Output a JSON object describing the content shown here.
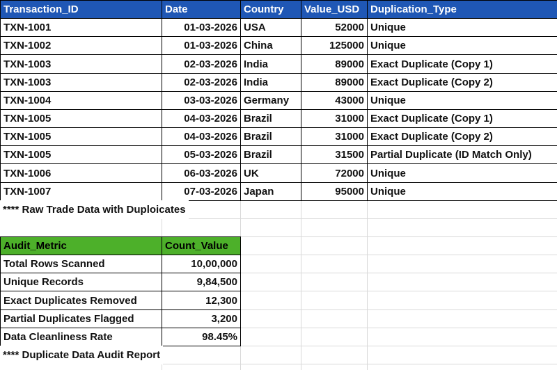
{
  "raw_table": {
    "header": [
      "Transaction_ID",
      "Date",
      "Country",
      "Value_USD",
      "Duplication_Type"
    ],
    "rows": [
      [
        "TXN-1001",
        "01-03-2026",
        "USA",
        "52000",
        "Unique"
      ],
      [
        "TXN-1002",
        "01-03-2026",
        "China",
        "125000",
        "Unique"
      ],
      [
        "TXN-1003",
        "02-03-2026",
        "India",
        "89000",
        "Exact Duplicate (Copy 1)"
      ],
      [
        "TXN-1003",
        "02-03-2026",
        "India",
        "89000",
        "Exact Duplicate (Copy 2)"
      ],
      [
        "TXN-1004",
        "03-03-2026",
        "Germany",
        "43000",
        "Unique"
      ],
      [
        "TXN-1005",
        "04-03-2026",
        "Brazil",
        "31000",
        "Exact Duplicate (Copy 1)"
      ],
      [
        "TXN-1005",
        "04-03-2026",
        "Brazil",
        "31000",
        "Exact Duplicate (Copy 2)"
      ],
      [
        "TXN-1005",
        "05-03-2026",
        "Brazil",
        "31500",
        "Partial Duplicate (ID Match Only)"
      ],
      [
        "TXN-1006",
        "06-03-2026",
        "UK",
        "72000",
        "Unique"
      ],
      [
        "TXN-1007",
        "07-03-2026",
        "Japan",
        "95000",
        "Unique"
      ]
    ],
    "note": "**** Raw Trade Data with Duploicates"
  },
  "audit_table": {
    "header": [
      "Audit_Metric",
      "Count_Value"
    ],
    "rows": [
      [
        "Total Rows Scanned",
        "10,00,000"
      ],
      [
        "Unique Records",
        "9,84,500"
      ],
      [
        "Exact Duplicates Removed",
        "12,300"
      ],
      [
        "Partial Duplicates Flagged",
        "3,200"
      ],
      [
        "Data Cleanliness Rate",
        "98.45%"
      ]
    ],
    "note": "**** Duplicate Data Audit Report"
  }
}
